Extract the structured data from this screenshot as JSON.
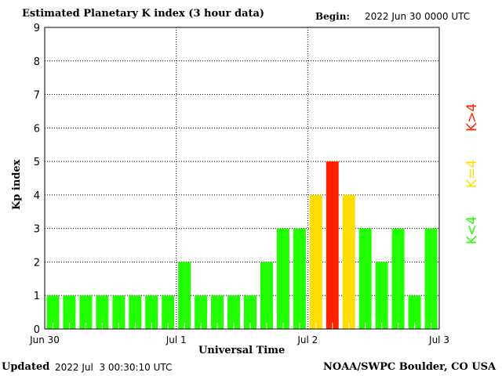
{
  "chart_data": {
    "type": "bar",
    "title": "Estimated Planetary K index (3 hour data)",
    "begin_label": "Begin:",
    "begin_value": "2022 Jun 30 0000 UTC",
    "xlabel": "Universal Time",
    "ylabel": "Kp index",
    "ylim": [
      0,
      9
    ],
    "yticks": [
      "0",
      "1",
      "2",
      "3",
      "4",
      "5",
      "6",
      "7",
      "8",
      "9"
    ],
    "xticks": [
      "Jun 30",
      "Jul 1",
      "Jul 2",
      "Jul 3"
    ],
    "grid": true,
    "values": [
      1,
      1,
      1,
      1,
      1,
      1,
      1,
      1,
      2,
      1,
      1,
      1,
      1,
      2,
      3,
      3,
      4,
      5,
      4,
      3,
      2,
      3,
      1,
      3
    ],
    "colors": {
      "low": "#22ff00",
      "equal": "#ffdd00",
      "high": "#ff2200"
    },
    "legend": [
      {
        "label": "K<4",
        "color": "#22ff00"
      },
      {
        "label": "K=4",
        "color": "#ffdd00"
      },
      {
        "label": "K>4",
        "color": "#ff2200"
      }
    ],
    "legend_placement": "right"
  },
  "footer": {
    "updated_label": "Updated",
    "updated_value": "2022 Jul  3 00:30:10 UTC",
    "source": "NOAA/SWPC Boulder, CO USA"
  }
}
